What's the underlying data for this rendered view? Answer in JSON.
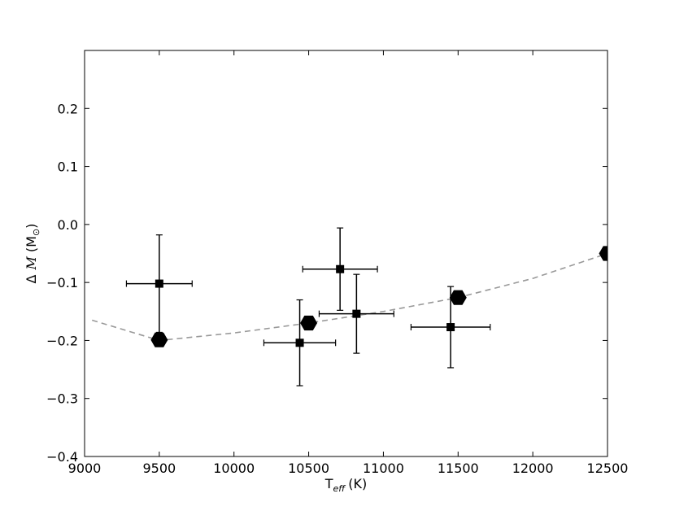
{
  "chart_data": {
    "type": "scatter",
    "title": "",
    "xlabel": {
      "main": "T",
      "sub": "eff",
      "unit": "(K)"
    },
    "ylabel": {
      "prefix": "Δ",
      "var": "M",
      "unit_open": "(M",
      "unit_sub": "⊙",
      "unit_close": ")"
    },
    "xlim": [
      9000,
      12500
    ],
    "ylim": [
      -0.4,
      0.3
    ],
    "xticks": [
      9000,
      9500,
      10000,
      10500,
      11000,
      11500,
      12000,
      12500
    ],
    "xtick_labels": [
      "9000",
      "9500",
      "10000",
      "10500",
      "11000",
      "11500",
      "12000",
      "12500"
    ],
    "yticks": [
      -0.4,
      -0.3,
      -0.2,
      -0.1,
      0.0,
      0.1,
      0.2
    ],
    "ytick_labels": [
      "−0.4",
      "−0.3",
      "−0.2",
      "−0.1",
      "0.0",
      "0.1",
      "0.2"
    ],
    "grid": false,
    "series": [
      {
        "marker": "square",
        "color": "#000000",
        "points": [
          {
            "x": 9500,
            "y": -0.102,
            "xerr": 220,
            "yerr": 0.084
          },
          {
            "x": 10440,
            "y": -0.204,
            "xerr": 240,
            "yerr": 0.074
          },
          {
            "x": 10710,
            "y": -0.077,
            "xerr": 250,
            "yerr": 0.071
          },
          {
            "x": 10820,
            "y": -0.154,
            "xerr": 250,
            "yerr": 0.068
          },
          {
            "x": 11450,
            "y": -0.177,
            "xerr": 265,
            "yerr": 0.07
          }
        ]
      },
      {
        "marker": "hexagon",
        "color": "#000000",
        "points": [
          {
            "x": 9500,
            "y": -0.199
          },
          {
            "x": 10500,
            "y": -0.17
          },
          {
            "x": 11500,
            "y": -0.126
          },
          {
            "x": 12500,
            "y": -0.05
          }
        ]
      },
      {
        "line_style": "dashed",
        "color": "#999999",
        "x": [
          9050,
          9500,
          10000,
          10500,
          11000,
          11500,
          12000,
          12500
        ],
        "y": [
          -0.165,
          -0.2,
          -0.187,
          -0.17,
          -0.15,
          -0.126,
          -0.093,
          -0.05
        ]
      }
    ]
  }
}
